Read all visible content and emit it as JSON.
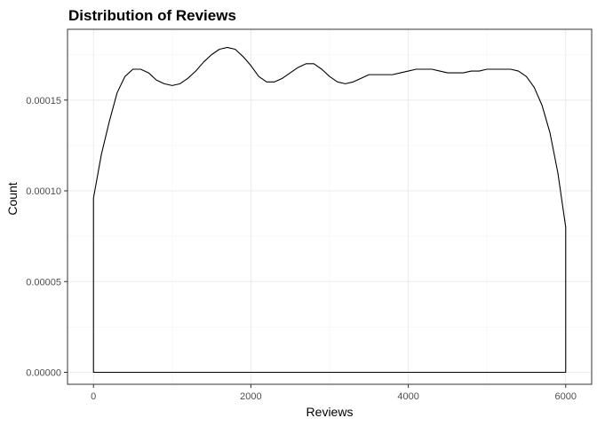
{
  "chart_data": {
    "type": "area",
    "title": "Distribution of Reviews",
    "xlabel": "Reviews",
    "ylabel": "Count",
    "xlim": [
      -330,
      6330
    ],
    "ylim": [
      -6.6e-06,
      0.000189
    ],
    "x_ticks": [
      0,
      2000,
      4000,
      6000
    ],
    "x_tick_labels": [
      "0",
      "2000",
      "4000",
      "6000"
    ],
    "y_ticks": [
      0,
      5e-05,
      0.0001,
      0.00015
    ],
    "y_tick_labels": [
      "0.00000",
      "0.00005",
      "0.00010",
      "0.00015"
    ],
    "grid": true,
    "legend": "none",
    "colors": {
      "line": "#000000",
      "fill": "none",
      "panel_border": "#333333",
      "grid": "#ebebeb"
    },
    "series": [
      {
        "x": [
          0,
          100,
          200,
          300,
          400,
          500,
          600,
          700,
          800,
          900,
          1000,
          1100,
          1200,
          1300,
          1400,
          1500,
          1600,
          1700,
          1800,
          1900,
          2000,
          2100,
          2200,
          2300,
          2400,
          2500,
          2600,
          2700,
          2800,
          2900,
          3000,
          3100,
          3200,
          3300,
          3400,
          3500,
          3600,
          3700,
          3800,
          3900,
          4000,
          4100,
          4200,
          4300,
          4400,
          4500,
          4600,
          4700,
          4800,
          4900,
          5000,
          5100,
          5200,
          5300,
          5400,
          5500,
          5600,
          5700,
          5800,
          5900,
          6000
        ],
        "y": [
          9.6e-05,
          0.00012,
          0.000138,
          0.000154,
          0.000163,
          0.000167,
          0.000167,
          0.000165,
          0.000161,
          0.000159,
          0.000158,
          0.000159,
          0.000162,
          0.000166,
          0.000171,
          0.000175,
          0.000178,
          0.000179,
          0.000178,
          0.000174,
          0.000169,
          0.000163,
          0.00016,
          0.00016,
          0.000162,
          0.000165,
          0.000168,
          0.00017,
          0.00017,
          0.000167,
          0.000163,
          0.00016,
          0.000159,
          0.00016,
          0.000162,
          0.000164,
          0.000164,
          0.000164,
          0.000164,
          0.000165,
          0.000166,
          0.000167,
          0.000167,
          0.000167,
          0.000166,
          0.000165,
          0.000165,
          0.000165,
          0.000166,
          0.000166,
          0.000167,
          0.000167,
          0.000167,
          0.000167,
          0.000166,
          0.000163,
          0.000157,
          0.000147,
          0.000132,
          0.00011,
          8e-05
        ]
      }
    ]
  }
}
